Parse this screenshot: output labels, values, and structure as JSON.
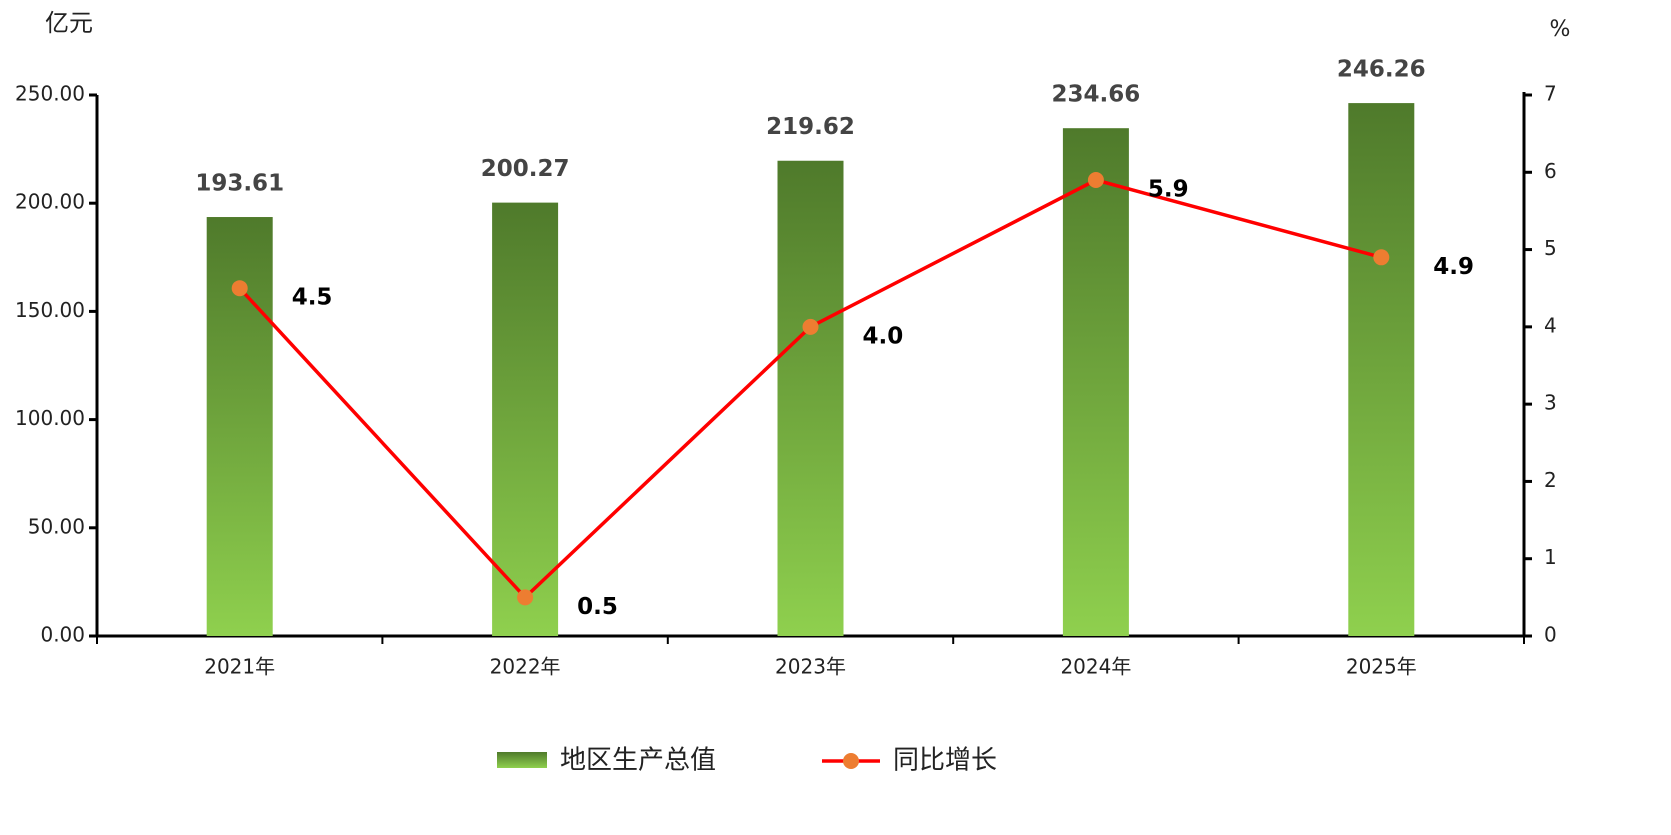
{
  "chart_data": {
    "type": "bar-line",
    "y_unit": "亿元",
    "y2_unit": "%",
    "categories": [
      "2021年",
      "2022年",
      "2023年",
      "2024年",
      "2025年"
    ],
    "series": [
      {
        "name": "地区生产总值",
        "type": "bar",
        "color": "#8fd04e",
        "values": [
          193.61,
          200.27,
          219.62,
          234.66,
          246.26
        ]
      },
      {
        "name": "同比增长",
        "type": "line",
        "axis": "y2",
        "color": "#ff0000",
        "marker_color": "#ed7d31",
        "values": [
          4.5,
          0.5,
          4.0,
          5.9,
          4.9
        ],
        "value_labels": [
          "4.5",
          "0.5",
          "4.0",
          "5.9",
          "4.9"
        ]
      }
    ],
    "ylim": [
      0,
      250
    ],
    "yticks": [
      {
        "value": 0,
        "label": "0.00"
      },
      {
        "value": 50,
        "label": "50.00"
      },
      {
        "value": 100,
        "label": "100.00"
      },
      {
        "value": 150,
        "label": "150.00"
      },
      {
        "value": 200,
        "label": "200.00"
      },
      {
        "value": 250,
        "label": "250.00"
      }
    ],
    "y2lim": [
      0,
      7
    ],
    "y2ticks": [
      0,
      1,
      2,
      3,
      4,
      5,
      6,
      7
    ]
  }
}
